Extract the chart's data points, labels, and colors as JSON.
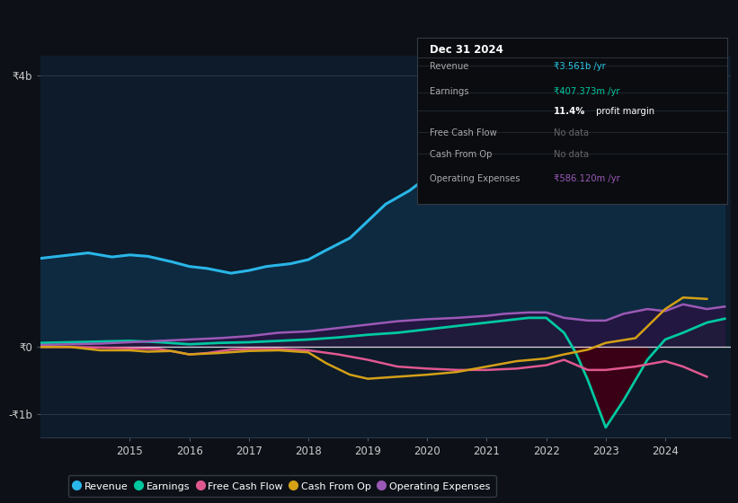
{
  "bg_color": "#0d1117",
  "plot_bg_color": "#0d1b2a",
  "ylabel_top": "₹4b",
  "ylabel_zero": "₹0",
  "ylabel_bottom": "-₹1b",
  "legend_items": [
    {
      "label": "Revenue",
      "color": "#29b6e8"
    },
    {
      "label": "Earnings",
      "color": "#00c8a0"
    },
    {
      "label": "Free Cash Flow",
      "color": "#e05890"
    },
    {
      "label": "Cash From Op",
      "color": "#d4a017"
    },
    {
      "label": "Operating Expenses",
      "color": "#9b59b6"
    }
  ],
  "tooltip": {
    "date": "Dec 31 2024",
    "rows": [
      {
        "label": "Revenue",
        "value": "₹3.561b /yr",
        "value_color": "#29c8e8"
      },
      {
        "label": "Earnings",
        "value": "₹407.373m /yr",
        "value_color": "#00c8a0"
      },
      {
        "label": "",
        "value": "11.4% profit margin",
        "value_color": "#ffffff"
      },
      {
        "label": "Free Cash Flow",
        "value": "No data",
        "value_color": "#666666"
      },
      {
        "label": "Cash From Op",
        "value": "No data",
        "value_color": "#666666"
      },
      {
        "label": "Operating Expenses",
        "value": "₹586.120m /yr",
        "value_color": "#9b59b6"
      }
    ]
  },
  "revenue_x": [
    2013.5,
    2014.0,
    2014.3,
    2014.7,
    2015.0,
    2015.3,
    2015.7,
    2016.0,
    2016.3,
    2016.7,
    2017.0,
    2017.3,
    2017.7,
    2018.0,
    2018.3,
    2018.7,
    2019.0,
    2019.3,
    2019.7,
    2020.0,
    2020.3,
    2020.7,
    2021.0,
    2021.3,
    2021.7,
    2022.0,
    2022.3,
    2022.7,
    2023.0,
    2023.3,
    2023.7,
    2024.0,
    2024.3,
    2024.7,
    2025.0
  ],
  "revenue_y": [
    1.3,
    1.35,
    1.38,
    1.32,
    1.35,
    1.33,
    1.25,
    1.18,
    1.15,
    1.08,
    1.12,
    1.18,
    1.22,
    1.28,
    1.42,
    1.6,
    1.85,
    2.1,
    2.3,
    2.5,
    2.65,
    2.72,
    2.75,
    2.72,
    2.78,
    2.82,
    2.72,
    2.55,
    2.48,
    2.7,
    3.0,
    3.2,
    3.35,
    3.5,
    3.561
  ],
  "earnings_x": [
    2013.5,
    2014.0,
    2014.5,
    2015.0,
    2015.5,
    2016.0,
    2016.5,
    2017.0,
    2017.5,
    2018.0,
    2018.5,
    2019.0,
    2019.5,
    2020.0,
    2020.5,
    2021.0,
    2021.3,
    2021.7,
    2022.0,
    2022.3,
    2022.5,
    2022.7,
    2023.0,
    2023.3,
    2023.7,
    2024.0,
    2024.3,
    2024.7,
    2025.0
  ],
  "earnings_y": [
    0.05,
    0.06,
    0.07,
    0.08,
    0.06,
    0.03,
    0.05,
    0.06,
    0.08,
    0.1,
    0.13,
    0.17,
    0.2,
    0.25,
    0.3,
    0.35,
    0.38,
    0.42,
    0.42,
    0.2,
    -0.1,
    -0.5,
    -1.2,
    -0.8,
    -0.2,
    0.1,
    0.2,
    0.35,
    0.407
  ],
  "fcf_x": [
    2013.5,
    2014.0,
    2014.5,
    2015.0,
    2015.5,
    2016.0,
    2016.3,
    2016.7,
    2017.0,
    2017.5,
    2018.0,
    2018.5,
    2019.0,
    2019.5,
    2020.0,
    2020.5,
    2021.0,
    2021.5,
    2022.0,
    2022.3,
    2022.7,
    2023.0,
    2023.5,
    2024.0,
    2024.3,
    2024.7
  ],
  "fcf_y": [
    -0.01,
    -0.01,
    -0.02,
    -0.03,
    -0.04,
    -0.12,
    -0.1,
    -0.05,
    -0.04,
    -0.04,
    -0.06,
    -0.12,
    -0.2,
    -0.3,
    -0.33,
    -0.35,
    -0.35,
    -0.33,
    -0.28,
    -0.2,
    -0.35,
    -0.35,
    -0.3,
    -0.22,
    -0.3,
    -0.45
  ],
  "cfo_x": [
    2013.5,
    2014.0,
    2014.5,
    2015.0,
    2015.3,
    2015.7,
    2016.0,
    2016.5,
    2017.0,
    2017.5,
    2018.0,
    2018.3,
    2018.7,
    2019.0,
    2019.5,
    2020.0,
    2020.5,
    2021.0,
    2021.5,
    2022.0,
    2022.3,
    2022.7,
    2023.0,
    2023.5,
    2024.0,
    2024.3,
    2024.7
  ],
  "cfo_y": [
    -0.01,
    -0.01,
    -0.06,
    -0.06,
    -0.08,
    -0.07,
    -0.12,
    -0.1,
    -0.07,
    -0.06,
    -0.09,
    -0.25,
    -0.42,
    -0.48,
    -0.45,
    -0.42,
    -0.38,
    -0.3,
    -0.22,
    -0.18,
    -0.12,
    -0.05,
    0.05,
    0.12,
    0.55,
    0.72,
    0.7
  ],
  "oe_x": [
    2013.5,
    2014.0,
    2014.5,
    2015.0,
    2015.5,
    2016.0,
    2016.5,
    2017.0,
    2017.5,
    2018.0,
    2018.5,
    2019.0,
    2019.5,
    2020.0,
    2020.5,
    2021.0,
    2021.3,
    2021.7,
    2022.0,
    2022.3,
    2022.7,
    2023.0,
    2023.3,
    2023.7,
    2024.0,
    2024.3,
    2024.7,
    2025.0
  ],
  "oe_y": [
    0.02,
    0.03,
    0.04,
    0.06,
    0.08,
    0.1,
    0.12,
    0.15,
    0.2,
    0.22,
    0.27,
    0.32,
    0.37,
    0.4,
    0.42,
    0.45,
    0.48,
    0.5,
    0.5,
    0.42,
    0.38,
    0.38,
    0.48,
    0.55,
    0.52,
    0.62,
    0.55,
    0.586
  ],
  "ylim": [
    -1.35,
    4.3
  ],
  "xlim": [
    2013.5,
    2025.1
  ]
}
